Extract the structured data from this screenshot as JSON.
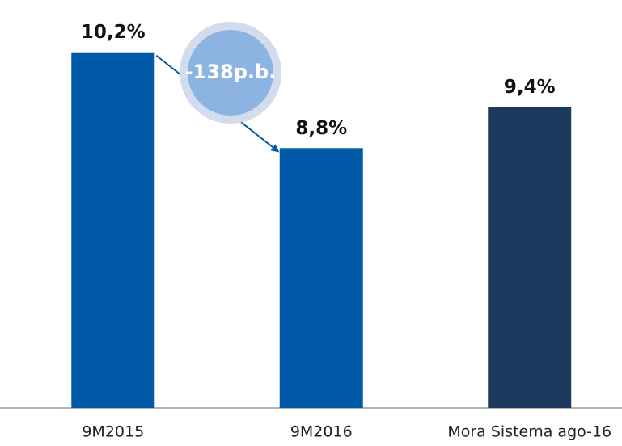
{
  "chart_data": {
    "type": "bar",
    "categories": [
      "9M2015",
      "9M2016",
      "Mora Sistema ago-16"
    ],
    "values": [
      10.2,
      8.8,
      9.4
    ],
    "value_labels": [
      "10,2%",
      "8,8%",
      "9,4%"
    ],
    "colors": [
      "#005aa8",
      "#005aa8",
      "#1b3a5e"
    ],
    "ylim": [
      5,
      11
    ],
    "annotation": "-138p.b."
  }
}
